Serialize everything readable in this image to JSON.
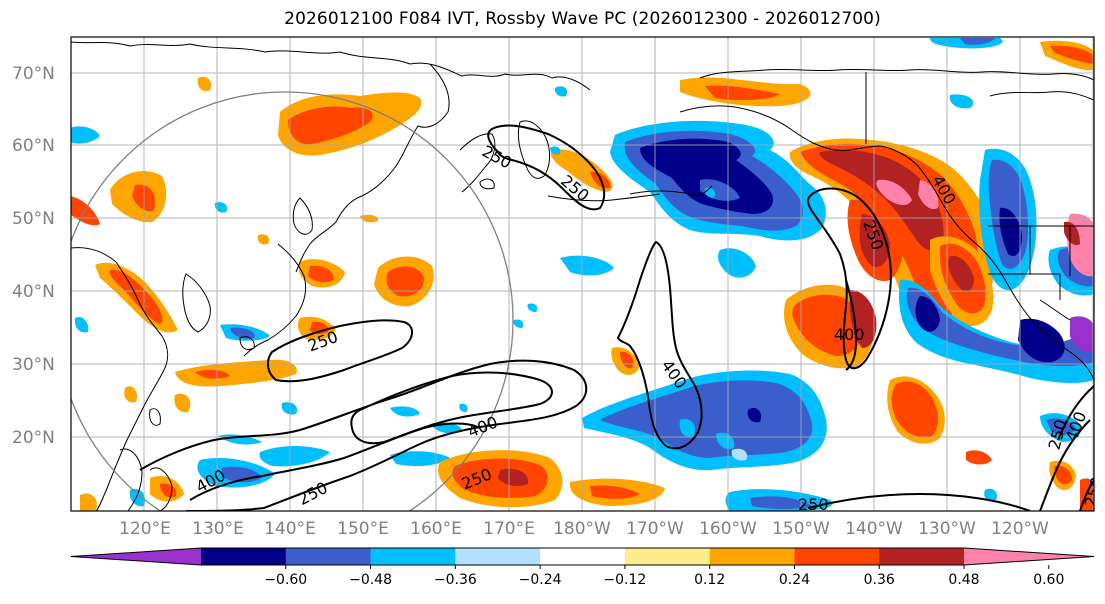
{
  "title": "2026012100 F084 IVT, Rossby Wave PC (2026012300 - 2026012700)",
  "lat_labels": [
    "70°N",
    "60°N",
    "50°N",
    "40°N",
    "30°N",
    "20°N"
  ],
  "lon_labels": [
    "120°E",
    "130°E",
    "140°E",
    "150°E",
    "160°E",
    "170°E",
    "180°W",
    "170°W",
    "160°W",
    "150°W",
    "140°W",
    "130°W",
    "120°W"
  ],
  "colorbar": {
    "colors": [
      "#9932cc",
      "#00008b",
      "#3a5fcd",
      "#00bfff",
      "#b0e2ff",
      "#ffffff",
      "#ffec8b",
      "#ffa500",
      "#ff4500",
      "#b22222",
      "#ff82ab"
    ],
    "tick_labels": [
      "−0.60",
      "−0.48",
      "−0.36",
      "−0.24",
      "−0.12",
      "0.12",
      "0.24",
      "0.36",
      "0.48",
      "0.60"
    ]
  },
  "contour_labels": [
    "250",
    "250",
    "250",
    "250",
    "250",
    "250",
    "400",
    "400",
    "400",
    "400",
    "400",
    "250",
    "250",
    "400",
    "250"
  ]
}
